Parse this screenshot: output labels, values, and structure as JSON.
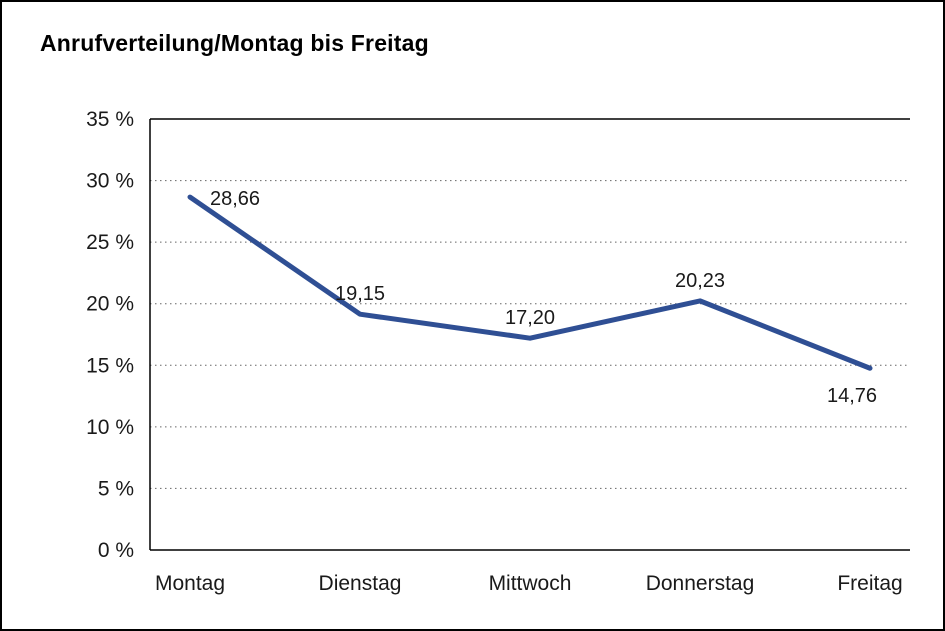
{
  "chart_data": {
    "type": "line",
    "title": "Anrufverteilung/Montag bis Freitag",
    "categories": [
      "Montag",
      "Dienstag",
      "Mittwoch",
      "Donnerstag",
      "Freitag"
    ],
    "values": [
      28.66,
      19.15,
      17.2,
      20.23,
      14.76
    ],
    "value_labels": [
      "28,66",
      "19,15",
      "17,20",
      "20,23",
      "14,76"
    ],
    "value_label_positions": [
      "right",
      "above",
      "above",
      "above",
      "below"
    ],
    "y_ticks": [
      0,
      5,
      10,
      15,
      20,
      25,
      30,
      35
    ],
    "y_tick_labels": [
      "0 %",
      "5 %",
      "10 %",
      "15 %",
      "20 %",
      "25 %",
      "30 %",
      "35 %"
    ],
    "ylim": [
      0,
      35
    ],
    "xlabel": "",
    "ylabel": "",
    "grid": "horizontal-dotted",
    "legend": "none",
    "line_color": "#2f4f94",
    "axis_color": "#000000",
    "grid_color": "#666666"
  }
}
